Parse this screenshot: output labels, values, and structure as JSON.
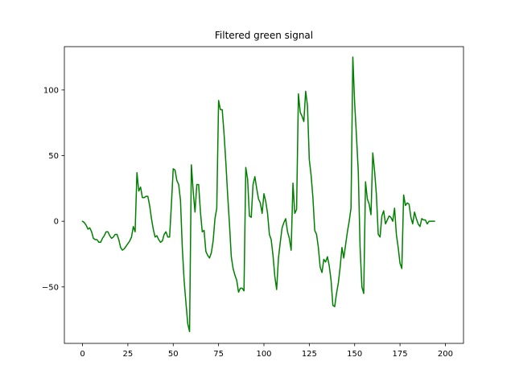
{
  "chart_data": {
    "type": "line",
    "title": "Filtered green signal",
    "xlabel": "",
    "ylabel": "",
    "xlim": [
      -10,
      210
    ],
    "ylim": [
      -93,
      133
    ],
    "xticks": [
      0,
      25,
      50,
      75,
      100,
      125,
      150,
      175,
      200
    ],
    "xtick_labels": [
      "0",
      "25",
      "50",
      "75",
      "100",
      "125",
      "150",
      "175",
      "200"
    ],
    "yticks": [
      -50,
      0,
      50,
      100
    ],
    "ytick_labels": [
      "−50",
      "0",
      "50",
      "100"
    ],
    "grid": false,
    "series": [
      {
        "color": "#008000",
        "points": [
          [
            0,
            0
          ],
          [
            1,
            -1
          ],
          [
            2,
            -3
          ],
          [
            3,
            -6
          ],
          [
            4,
            -5
          ],
          [
            5,
            -8
          ],
          [
            6,
            -13
          ],
          [
            7,
            -14
          ],
          [
            8,
            -14
          ],
          [
            9,
            -16
          ],
          [
            10,
            -16
          ],
          [
            11,
            -13
          ],
          [
            12,
            -11
          ],
          [
            13,
            -8
          ],
          [
            14,
            -8
          ],
          [
            15,
            -11
          ],
          [
            16,
            -13
          ],
          [
            17,
            -12
          ],
          [
            18,
            -10
          ],
          [
            19,
            -10
          ],
          [
            20,
            -14
          ],
          [
            21,
            -20
          ],
          [
            22,
            -22
          ],
          [
            23,
            -21
          ],
          [
            24,
            -19
          ],
          [
            25,
            -17
          ],
          [
            26,
            -15
          ],
          [
            27,
            -12
          ],
          [
            28,
            -4
          ],
          [
            29,
            -8
          ],
          [
            30,
            37
          ],
          [
            31,
            23
          ],
          [
            32,
            26
          ],
          [
            33,
            18
          ],
          [
            34,
            18
          ],
          [
            35,
            19
          ],
          [
            36,
            19
          ],
          [
            37,
            12
          ],
          [
            38,
            2
          ],
          [
            39,
            -6
          ],
          [
            40,
            -12
          ],
          [
            41,
            -11
          ],
          [
            42,
            -14
          ],
          [
            43,
            -16
          ],
          [
            44,
            -15
          ],
          [
            45,
            -10
          ],
          [
            46,
            -8
          ],
          [
            47,
            -12
          ],
          [
            48,
            -12
          ],
          [
            49,
            13
          ],
          [
            50,
            40
          ],
          [
            51,
            39
          ],
          [
            52,
            31
          ],
          [
            53,
            28
          ],
          [
            54,
            16
          ],
          [
            55,
            -20
          ],
          [
            56,
            -45
          ],
          [
            57,
            -62
          ],
          [
            58,
            -78
          ],
          [
            59,
            -84
          ],
          [
            60,
            43
          ],
          [
            61,
            23
          ],
          [
            62,
            7
          ],
          [
            63,
            28
          ],
          [
            64,
            28
          ],
          [
            65,
            7
          ],
          [
            66,
            -8
          ],
          [
            67,
            -7
          ],
          [
            68,
            -23
          ],
          [
            69,
            -26
          ],
          [
            70,
            -28
          ],
          [
            71,
            -24
          ],
          [
            72,
            -15
          ],
          [
            73,
            2
          ],
          [
            74,
            10
          ],
          [
            75,
            92
          ],
          [
            76,
            85
          ],
          [
            77,
            85
          ],
          [
            78,
            67
          ],
          [
            79,
            45
          ],
          [
            80,
            20
          ],
          [
            81,
            -2
          ],
          [
            82,
            -27
          ],
          [
            83,
            -36
          ],
          [
            84,
            -41
          ],
          [
            85,
            -45
          ],
          [
            86,
            -54
          ],
          [
            87,
            -51
          ],
          [
            88,
            -51
          ],
          [
            89,
            -53
          ],
          [
            90,
            41
          ],
          [
            91,
            32
          ],
          [
            92,
            4
          ],
          [
            93,
            3
          ],
          [
            94,
            28
          ],
          [
            95,
            34
          ],
          [
            96,
            25
          ],
          [
            97,
            17
          ],
          [
            98,
            14
          ],
          [
            99,
            6
          ],
          [
            100,
            21
          ],
          [
            101,
            15
          ],
          [
            102,
            6
          ],
          [
            103,
            -10
          ],
          [
            104,
            -14
          ],
          [
            105,
            -26
          ],
          [
            106,
            -42
          ],
          [
            107,
            -52
          ],
          [
            108,
            -28
          ],
          [
            109,
            -16
          ],
          [
            110,
            -5
          ],
          [
            111,
            -1
          ],
          [
            112,
            2
          ],
          [
            113,
            -8
          ],
          [
            114,
            -13
          ],
          [
            115,
            -22
          ],
          [
            116,
            29
          ],
          [
            117,
            6
          ],
          [
            118,
            9
          ],
          [
            119,
            97
          ],
          [
            120,
            83
          ],
          [
            121,
            80
          ],
          [
            122,
            76
          ],
          [
            123,
            99
          ],
          [
            124,
            88
          ],
          [
            125,
            47
          ],
          [
            126,
            35
          ],
          [
            127,
            18
          ],
          [
            128,
            -7
          ],
          [
            129,
            -10
          ],
          [
            130,
            -20
          ],
          [
            131,
            -35
          ],
          [
            132,
            -39
          ],
          [
            133,
            -29
          ],
          [
            134,
            -31
          ],
          [
            135,
            -27
          ],
          [
            136,
            -34
          ],
          [
            137,
            -45
          ],
          [
            138,
            -64
          ],
          [
            139,
            -65
          ],
          [
            140,
            -55
          ],
          [
            141,
            -47
          ],
          [
            142,
            -35
          ],
          [
            143,
            -20
          ],
          [
            144,
            -28
          ],
          [
            145,
            -18
          ],
          [
            146,
            -8
          ],
          [
            147,
            0
          ],
          [
            148,
            10
          ],
          [
            149,
            125
          ],
          [
            150,
            90
          ],
          [
            151,
            65
          ],
          [
            152,
            38
          ],
          [
            153,
            -20
          ],
          [
            154,
            -50
          ],
          [
            155,
            -55
          ],
          [
            156,
            30
          ],
          [
            157,
            17
          ],
          [
            158,
            13
          ],
          [
            159,
            5
          ],
          [
            160,
            52
          ],
          [
            161,
            38
          ],
          [
            162,
            20
          ],
          [
            163,
            -10
          ],
          [
            164,
            -12
          ],
          [
            165,
            4
          ],
          [
            166,
            8
          ],
          [
            167,
            -2
          ],
          [
            168,
            1
          ],
          [
            169,
            4
          ],
          [
            170,
            3
          ],
          [
            171,
            0
          ],
          [
            172,
            10
          ],
          [
            173,
            -10
          ],
          [
            174,
            -20
          ],
          [
            175,
            -32
          ],
          [
            176,
            -36
          ],
          [
            177,
            20
          ],
          [
            178,
            12
          ],
          [
            179,
            14
          ],
          [
            180,
            13
          ],
          [
            181,
            3
          ],
          [
            182,
            -2
          ],
          [
            183,
            7
          ],
          [
            184,
            2
          ],
          [
            185,
            -2
          ],
          [
            186,
            -4
          ],
          [
            187,
            2
          ],
          [
            188,
            1
          ],
          [
            189,
            1
          ],
          [
            190,
            -2
          ],
          [
            191,
            0
          ],
          [
            192,
            0
          ],
          [
            193,
            0
          ],
          [
            194,
            0
          ]
        ]
      }
    ]
  }
}
